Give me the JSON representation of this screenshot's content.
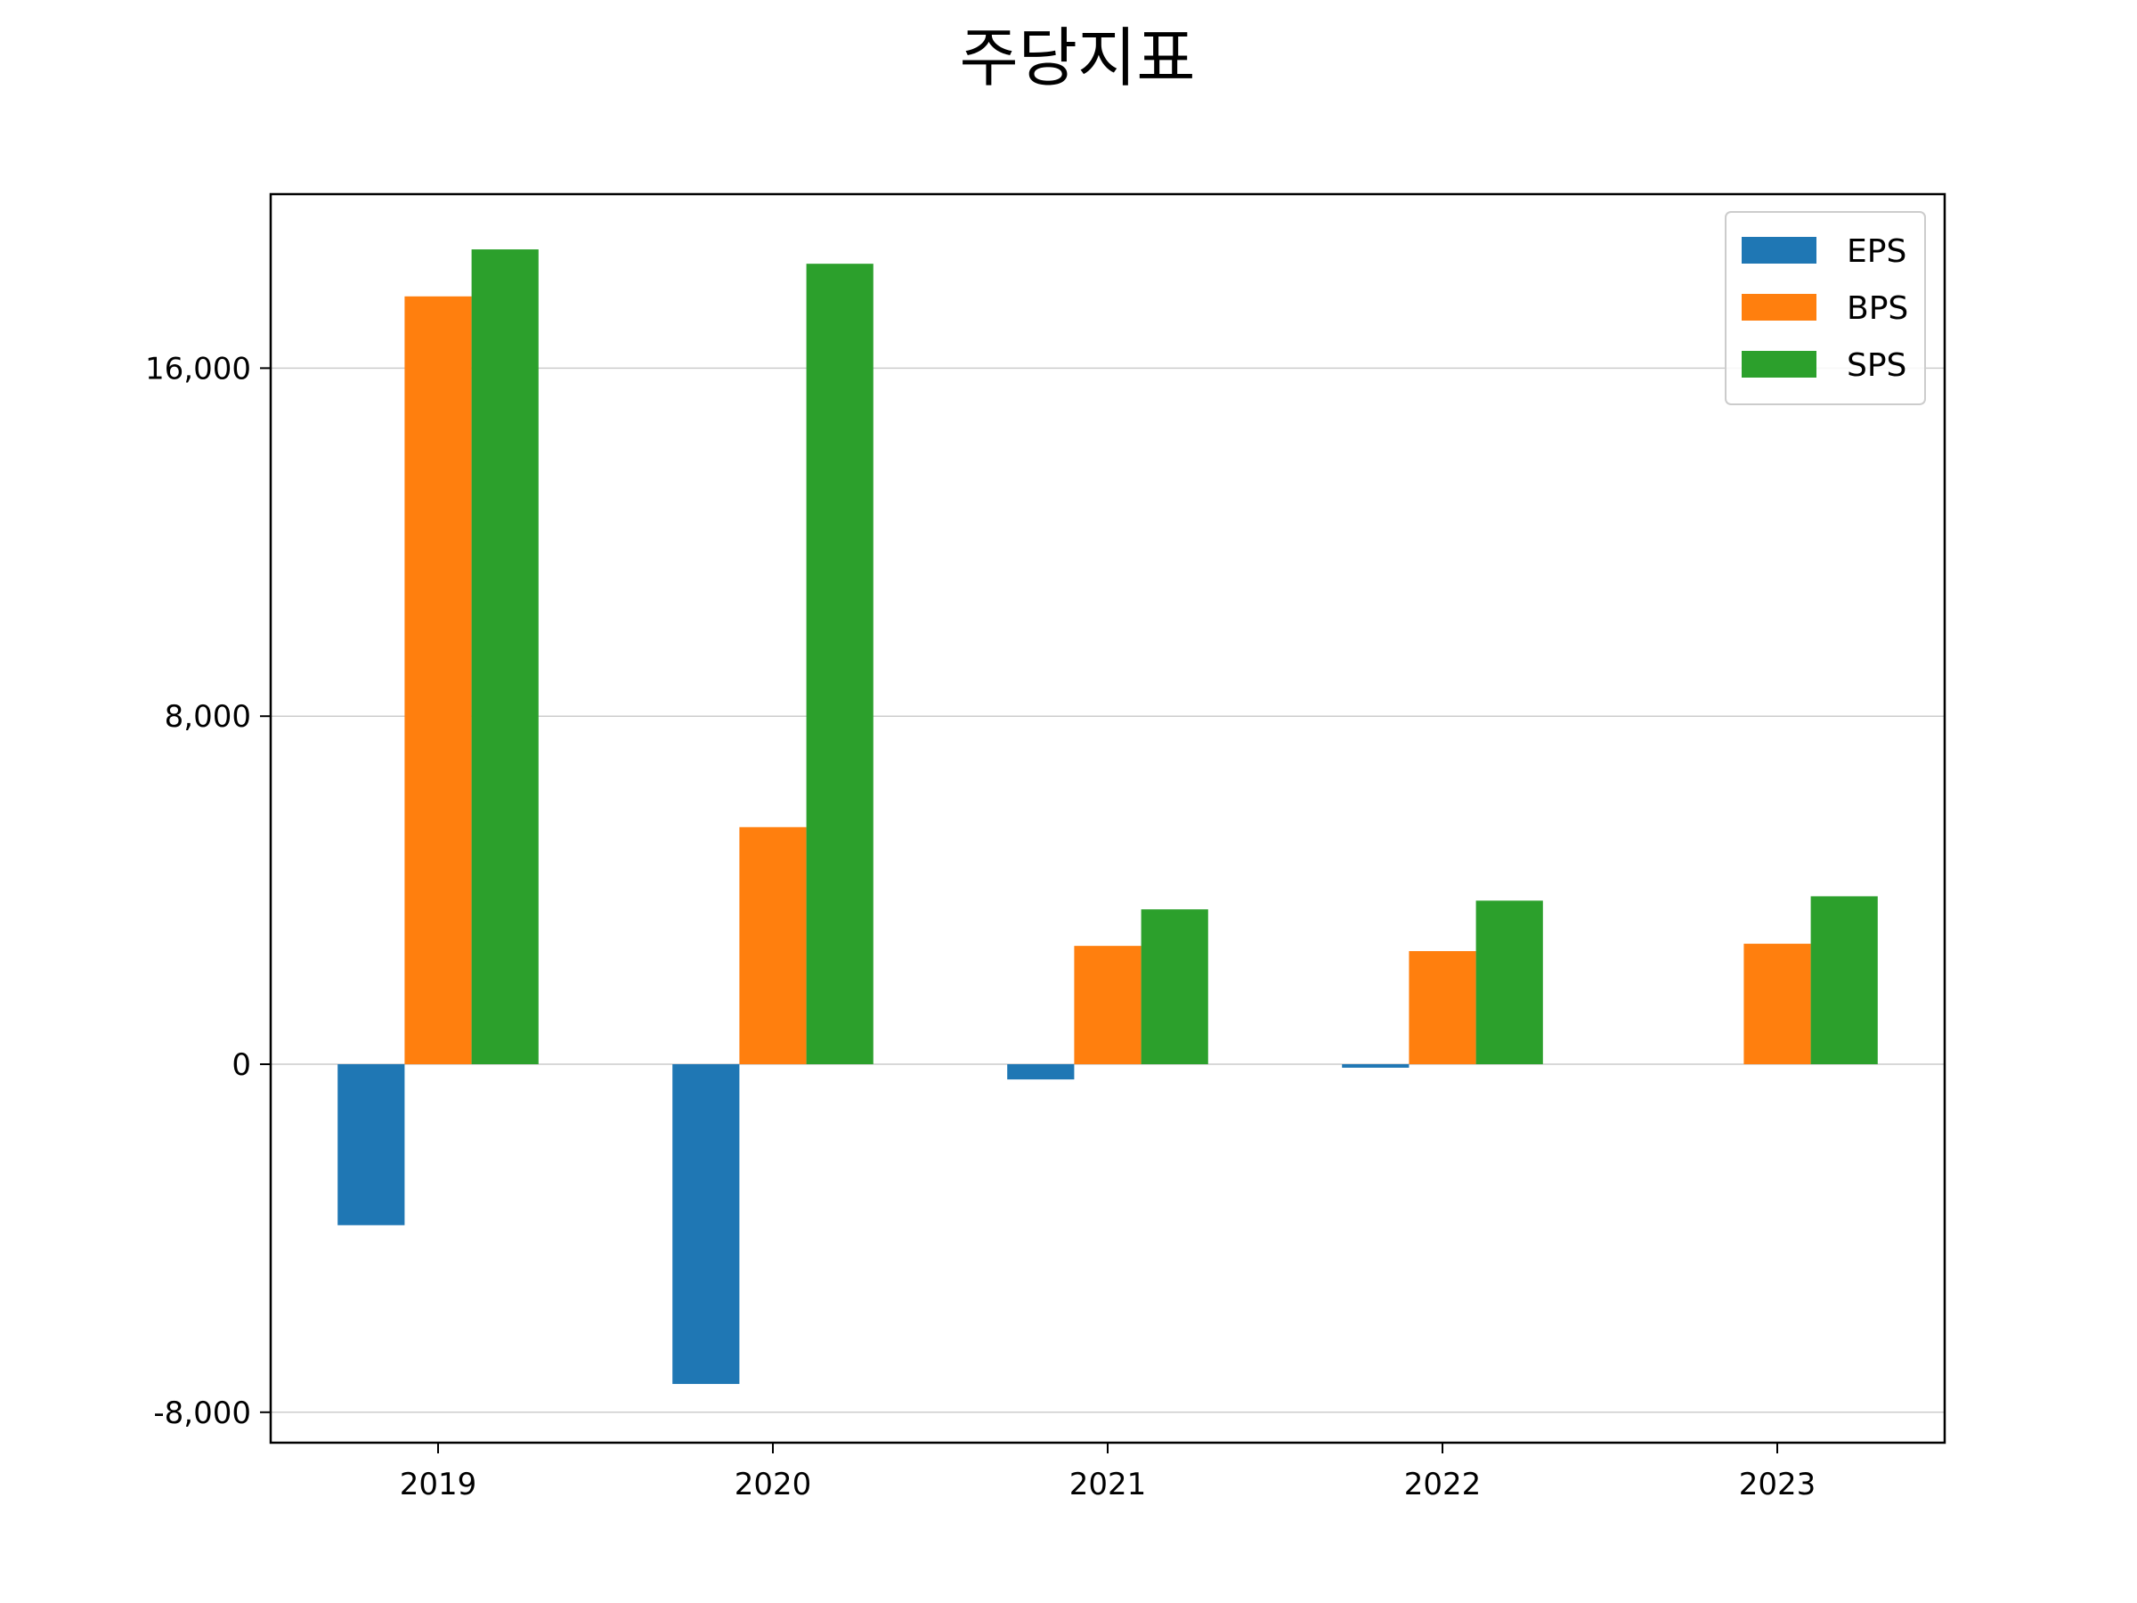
{
  "chart_data": {
    "type": "bar",
    "title": "주당지표",
    "xlabel": "",
    "ylabel": "",
    "categories": [
      "2019",
      "2020",
      "2021",
      "2022",
      "2023"
    ],
    "series": [
      {
        "name": "EPS",
        "color": "#1f77b4",
        "values": [
          -3700,
          -7350,
          -350,
          -80,
          null
        ]
      },
      {
        "name": "BPS",
        "color": "#ff7f0e",
        "values": [
          17650,
          5450,
          2720,
          2600,
          2770
        ]
      },
      {
        "name": "SPS",
        "color": "#2ca02c",
        "values": [
          18730,
          18400,
          3560,
          3760,
          3860
        ]
      }
    ],
    "ylim": [
      -8700,
      20000
    ],
    "yticks": [
      -8000,
      0,
      8000,
      16000
    ],
    "ytick_labels": [
      "-8,000",
      "0",
      "8,000",
      "16,000"
    ],
    "grid": "y",
    "legend_position": "top-right"
  }
}
